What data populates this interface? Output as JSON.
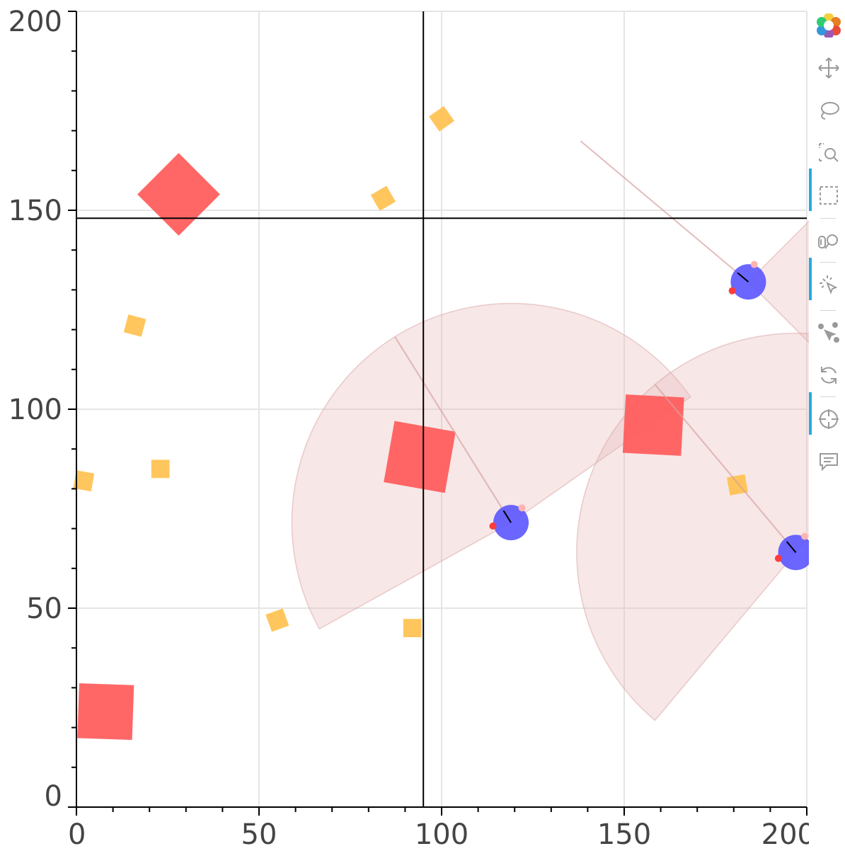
{
  "chart_data": {
    "type": "scatter",
    "title": "",
    "xlabel": "",
    "ylabel": "",
    "xlim": [
      0,
      200
    ],
    "ylim": [
      0,
      200
    ],
    "x_ticks": [
      "0",
      "50",
      "100",
      "150",
      "200"
    ],
    "y_ticks": [
      "0",
      "50",
      "100",
      "150",
      "200"
    ],
    "grid": true,
    "crosshair": {
      "x": 95,
      "y": 148
    },
    "colors": {
      "obstacle": "#ff5a5a",
      "food": "#ffc04d",
      "agent": "#5a55ff",
      "sensor": "#e6b3b3",
      "axis": "#000000",
      "grid": "#e5e5e5",
      "toolbar_active": "#26aae1"
    },
    "obstacles": [
      {
        "x": 28,
        "y": 154,
        "size": 16,
        "angle": 45
      },
      {
        "x": 94,
        "y": 88,
        "size": 17,
        "angle": -10
      },
      {
        "x": 158,
        "y": 96,
        "size": 16,
        "angle": -3
      },
      {
        "x": 8,
        "y": 24,
        "size": 15,
        "angle": -2
      }
    ],
    "food": [
      {
        "x": 100,
        "y": 173,
        "angle": 35
      },
      {
        "x": 84,
        "y": 153,
        "angle": 30
      },
      {
        "x": 16,
        "y": 121,
        "angle": -15
      },
      {
        "x": 23,
        "y": 85,
        "angle": 0
      },
      {
        "x": 2,
        "y": 82,
        "angle": -10
      },
      {
        "x": 55,
        "y": 47,
        "angle": 20
      },
      {
        "x": 92,
        "y": 45,
        "angle": 0
      },
      {
        "x": 181,
        "y": 81,
        "angle": 10
      }
    ],
    "agents": [
      {
        "x": 119,
        "y": 71.5,
        "heading": 122,
        "fov_start": 35,
        "fov_end": 209,
        "range": 60
      },
      {
        "x": 184,
        "y": 132,
        "heading": 140,
        "fov_start": -45,
        "fov_end": 45,
        "range": 70
      },
      {
        "x": 197,
        "y": 64,
        "heading": 130,
        "fov_start": 52,
        "fov_end": 230,
        "range": 60
      }
    ]
  },
  "toolbar": {
    "logo": "bokeh-logo-icon",
    "tools": [
      {
        "icon": "pan-icon",
        "active": false
      },
      {
        "icon": "lasso-select-icon",
        "active": false
      },
      {
        "icon": "zoom-in-icon",
        "active": false
      },
      {
        "icon": "box-select-icon",
        "active": true
      },
      {
        "icon": "box-zoom-icon",
        "active": false
      },
      {
        "icon": "tap-icon",
        "active": true
      },
      {
        "icon": "point-draw-icon",
        "active": false
      },
      {
        "icon": "reset-icon",
        "active": false
      },
      {
        "icon": "crosshair-icon",
        "active": true
      },
      {
        "icon": "hover-icon",
        "active": false
      }
    ]
  }
}
